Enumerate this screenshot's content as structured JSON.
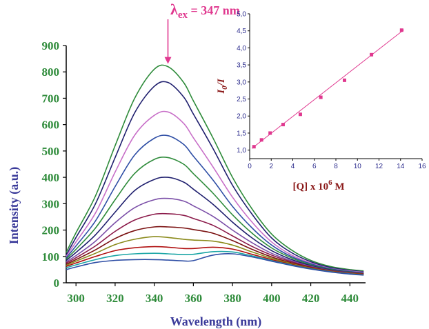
{
  "chart_data": [
    {
      "type": "line",
      "title": "",
      "xlabel": "Wavelength (nm)",
      "ylabel": "Intensity (a.u.)",
      "xlim": [
        295,
        448
      ],
      "ylim": [
        0,
        900
      ],
      "x_ticks": [
        300,
        320,
        340,
        360,
        380,
        400,
        420,
        440
      ],
      "y_ticks": [
        0,
        100,
        200,
        300,
        400,
        500,
        600,
        700,
        800,
        900
      ],
      "x": [
        295,
        300,
        310,
        320,
        330,
        340,
        347,
        355,
        360,
        370,
        380,
        390,
        400,
        410,
        420,
        430,
        440,
        447
      ],
      "series": [
        {
          "color": "#2e8b3a",
          "values": [
            115,
            190,
            330,
            520,
            700,
            810,
            820,
            760,
            690,
            550,
            400,
            280,
            185,
            125,
            85,
            62,
            50,
            45
          ]
        },
        {
          "color": "#1f1f6e",
          "values": [
            105,
            172,
            300,
            475,
            645,
            745,
            760,
            705,
            640,
            510,
            370,
            260,
            170,
            115,
            80,
            58,
            47,
            42
          ]
        },
        {
          "color": "#c870c8",
          "values": [
            100,
            155,
            265,
            420,
            560,
            635,
            648,
            605,
            550,
            440,
            325,
            230,
            155,
            106,
            75,
            55,
            45,
            40
          ]
        },
        {
          "color": "#2e4ea5",
          "values": [
            95,
            140,
            235,
            365,
            485,
            548,
            558,
            525,
            480,
            390,
            290,
            208,
            143,
            100,
            72,
            53,
            43,
            38
          ]
        },
        {
          "color": "#2e8b3a",
          "values": [
            90,
            127,
            208,
            315,
            415,
            468,
            475,
            450,
            414,
            340,
            258,
            188,
            132,
            95,
            68,
            51,
            41,
            37
          ]
        },
        {
          "color": "#1f1f6e",
          "values": [
            85,
            115,
            182,
            268,
            350,
            392,
            400,
            382,
            355,
            298,
            230,
            170,
            122,
            89,
            65,
            49,
            40,
            36
          ]
        },
        {
          "color": "#7b4fa8",
          "values": [
            80,
            103,
            158,
            228,
            285,
            315,
            320,
            310,
            292,
            252,
            200,
            152,
            112,
            84,
            62,
            47,
            39,
            35
          ]
        },
        {
          "color": "#8b1a4a",
          "values": [
            75,
            95,
            140,
            195,
            238,
            260,
            262,
            256,
            244,
            218,
            178,
            138,
            105,
            80,
            60,
            46,
            38,
            34
          ]
        },
        {
          "color": "#7a1010",
          "values": [
            70,
            88,
            125,
            168,
            198,
            212,
            212,
            208,
            202,
            188,
            160,
            127,
            98,
            76,
            58,
            45,
            37,
            33
          ]
        },
        {
          "color": "#8a8a1a",
          "values": [
            66,
            82,
            112,
            145,
            165,
            175,
            172,
            165,
            162,
            158,
            143,
            117,
            93,
            73,
            56,
            44,
            36,
            32
          ]
        },
        {
          "color": "#b01010",
          "values": [
            62,
            75,
            100,
            122,
            133,
            137,
            135,
            130,
            130,
            135,
            128,
            108,
            88,
            70,
            54,
            43,
            35,
            31
          ]
        },
        {
          "color": "#1aa5a5",
          "values": [
            57,
            68,
            88,
            103,
            110,
            112,
            110,
            107,
            108,
            118,
            117,
            102,
            84,
            68,
            53,
            42,
            34,
            30
          ]
        },
        {
          "color": "#2e4ea5",
          "values": [
            50,
            60,
            77,
            85,
            88,
            88,
            86,
            83,
            84,
            105,
            110,
            98,
            82,
            66,
            52,
            41,
            33,
            29
          ]
        }
      ],
      "annotation": {
        "label_main": "λ",
        "label_sub": "ex",
        "label_rest": " = 347 nm",
        "x": 347
      }
    },
    {
      "type": "scatter",
      "title": "",
      "xlabel_main": "[Q] x 10",
      "xlabel_sup": "6",
      "xlabel_rest": " M",
      "ylabel_main": "I",
      "ylabel_sub": "0",
      "ylabel_rest": "/I",
      "xlim": [
        0,
        16
      ],
      "ylim": [
        0.75,
        5.0
      ],
      "x_ticks": [
        "0",
        "2",
        "4",
        "6",
        "8",
        "10",
        "12",
        "14",
        "16"
      ],
      "y_ticks": [
        "1,0",
        "1,5",
        "2,0",
        "2,5",
        "3,0",
        "3,5",
        "4,0",
        "4,5",
        "5,0"
      ],
      "x": [
        0.4,
        1.1,
        1.9,
        3.1,
        4.7,
        6.6,
        8.8,
        11.3,
        14.1
      ],
      "values": [
        1.1,
        1.3,
        1.5,
        1.75,
        2.05,
        2.55,
        3.05,
        3.8,
        4.52
      ],
      "fit": {
        "x": [
          0.2,
          14.3
        ],
        "y": [
          1.05,
          4.53
        ]
      },
      "color": "#e0388f"
    }
  ]
}
